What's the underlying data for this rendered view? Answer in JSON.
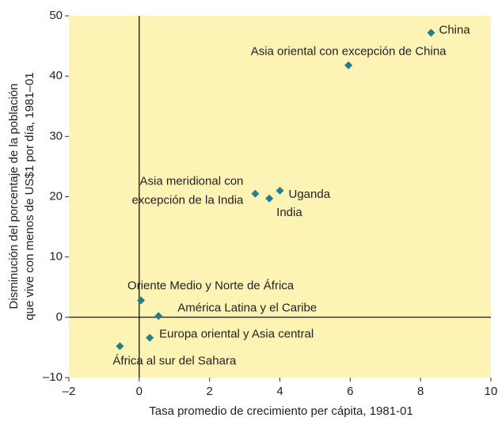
{
  "chart_data": {
    "type": "scatter",
    "xlabel": "Tasa promedio de crecimiento per cápita, 1981-01",
    "ylabel": [
      "Disminución del porcentaje de la población",
      "que vive con menos de US$1 por día, 1981–01"
    ],
    "labels": [
      "China",
      "Asia oriental con excepción de China",
      "Asia meridional con\nexcepción de la India",
      "India",
      "Uganda",
      "Oriente Medio y Norte de África",
      "América Latina y el Caribe",
      "Europa oriental y Asia central",
      "África al sur del Sahara"
    ],
    "x": [
      8.3,
      5.95,
      3.3,
      3.7,
      4.0,
      0.05,
      0.55,
      0.3,
      -0.55
    ],
    "values": [
      47.2,
      41.8,
      20.5,
      19.7,
      21.0,
      2.8,
      0.2,
      -3.4,
      -4.8
    ],
    "color": "#1f7f8a",
    "background": "#fdf3b5",
    "xlim": [
      -2,
      10
    ],
    "xticks": [
      {
        "value": -2,
        "label": "–2"
      },
      0,
      2,
      4,
      6,
      8,
      10
    ],
    "ylim": [
      -10,
      50
    ],
    "yticks": [
      {
        "value": -10,
        "label": "–10"
      },
      0,
      10,
      20,
      30,
      40,
      50
    ]
  }
}
